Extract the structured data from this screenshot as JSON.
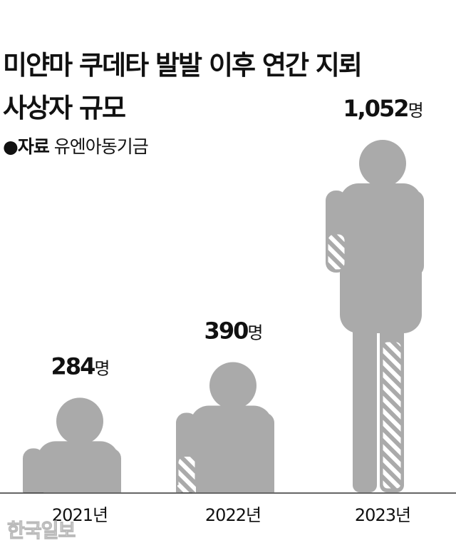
{
  "chart_data": {
    "type": "bar",
    "style": "pictogram",
    "title_line1": "미얀마 쿠데타 발발 이후 연간 지뢰",
    "title_line2": "사상자 규모",
    "source_label": "●자료",
    "source": "유엔아동기금",
    "unit": "명",
    "categories": [
      "2021년",
      "2022년",
      "2023년"
    ],
    "values": [
      284,
      390,
      1052
    ],
    "value_labels": [
      "284",
      "390",
      "1,052"
    ],
    "colors": {
      "figure": "#aaaaaa",
      "hatch": "#aaaaaa",
      "axis": "#333333",
      "text": "#111111"
    }
  },
  "watermark": "한국일보"
}
